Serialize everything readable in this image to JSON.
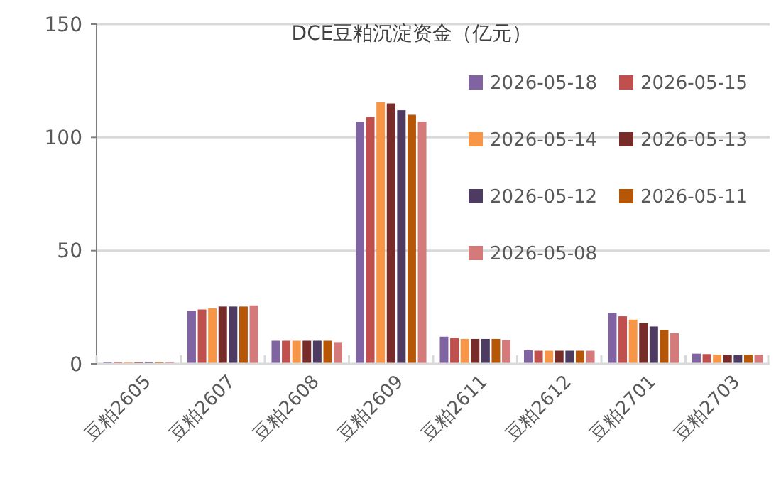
{
  "chart_data": {
    "type": "bar",
    "title": "DCE豆粕沉淀资金（亿元）",
    "categories": [
      "豆粕2605",
      "豆粕2607",
      "豆粕2608",
      "豆粕2609",
      "豆粕2611",
      "豆粕2612",
      "豆粕2701",
      "豆粕2703"
    ],
    "series": [
      {
        "name": "2026-05-18",
        "color": "#8064a2",
        "values": [
          0.8,
          23.5,
          10.2,
          107,
          12,
          6,
          22.5,
          4.5
        ]
      },
      {
        "name": "2026-05-15",
        "color": "#c0504d",
        "values": [
          0.8,
          24,
          10.2,
          109,
          11.5,
          5.8,
          21,
          4.3
        ]
      },
      {
        "name": "2026-05-14",
        "color": "#f79646",
        "values": [
          0.8,
          24.5,
          10.2,
          115.5,
          11,
          5.8,
          19.5,
          4
        ]
      },
      {
        "name": "2026-05-13",
        "color": "#772c2a",
        "values": [
          0.8,
          25.3,
          10.2,
          115,
          11,
          5.8,
          18,
          4
        ]
      },
      {
        "name": "2026-05-12",
        "color": "#4d3b62",
        "values": [
          0.8,
          25.3,
          10.2,
          112,
          11,
          5.8,
          16.5,
          4
        ]
      },
      {
        "name": "2026-05-11",
        "color": "#b65708",
        "values": [
          0.8,
          25.3,
          10.2,
          110,
          11,
          5.8,
          15,
          4
        ]
      },
      {
        "name": "2026-05-08",
        "color": "#d47a7a",
        "values": [
          0.8,
          25.8,
          9.6,
          107,
          10.5,
          5.8,
          13.5,
          4
        ]
      }
    ],
    "ylim": [
      0,
      150
    ],
    "yticks": [
      0,
      50,
      100,
      150
    ],
    "grid": "y",
    "legend": "top right"
  }
}
